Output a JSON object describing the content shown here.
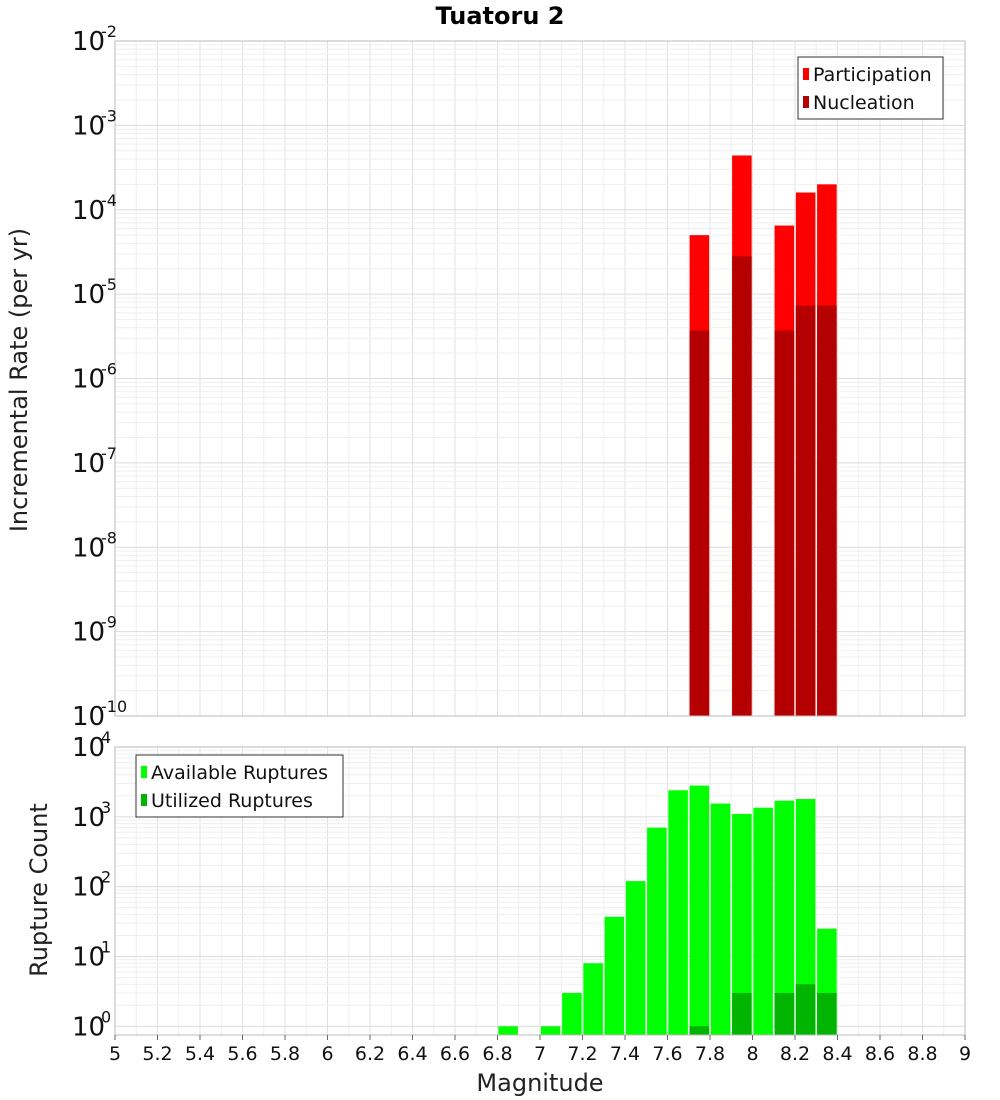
{
  "chart_data": [
    {
      "type": "bar",
      "title": "Tuatoru 2",
      "xlabel": "Magnitude",
      "ylabel": "Incremental Rate (per yr)",
      "yscale": "log",
      "xlim": [
        5,
        9
      ],
      "ylim": [
        1e-10,
        0.01
      ],
      "grid": true,
      "legend": "top-right",
      "series": [
        {
          "name": "Participation",
          "color": "#ff0000",
          "x": [
            7.75,
            7.95,
            8.15,
            8.25,
            8.35
          ],
          "values": [
            5e-05,
            0.00044,
            6.5e-05,
            0.00016,
            0.0002
          ]
        },
        {
          "name": "Nucleation",
          "color": "#b40000",
          "x": [
            7.75,
            7.95,
            8.15,
            8.25,
            8.35
          ],
          "values": [
            3.7e-06,
            2.8e-05,
            3.7e-06,
            7.3e-06,
            7.3e-06
          ]
        }
      ]
    },
    {
      "type": "bar",
      "xlabel": "Magnitude",
      "ylabel": "Rupture Count",
      "yscale": "log",
      "xlim": [
        5,
        9
      ],
      "ylim": [
        0.75,
        10000
      ],
      "xticks": [
        "5",
        "5.2",
        "5.4",
        "5.6",
        "5.8",
        "6",
        "6.2",
        "6.4",
        "6.6",
        "6.8",
        "7",
        "7.2",
        "7.4",
        "7.6",
        "7.8",
        "8",
        "8.2",
        "8.4",
        "8.6",
        "8.8",
        "9"
      ],
      "grid": true,
      "legend": "top-left",
      "series": [
        {
          "name": "Available Ruptures",
          "color": "#00ff00",
          "x": [
            6.85,
            7.05,
            7.15,
            7.25,
            7.35,
            7.45,
            7.55,
            7.65,
            7.75,
            7.85,
            7.95,
            8.05,
            8.15,
            8.25,
            8.35
          ],
          "values": [
            1,
            1,
            3,
            8,
            37,
            120,
            700,
            2400,
            2800,
            1550,
            1100,
            1350,
            1700,
            1800,
            25
          ]
        },
        {
          "name": "Utilized Ruptures",
          "color": "#00b400",
          "x": [
            7.75,
            7.95,
            8.15,
            8.25,
            8.35
          ],
          "values": [
            1,
            3,
            3,
            4,
            3
          ]
        }
      ]
    }
  ]
}
